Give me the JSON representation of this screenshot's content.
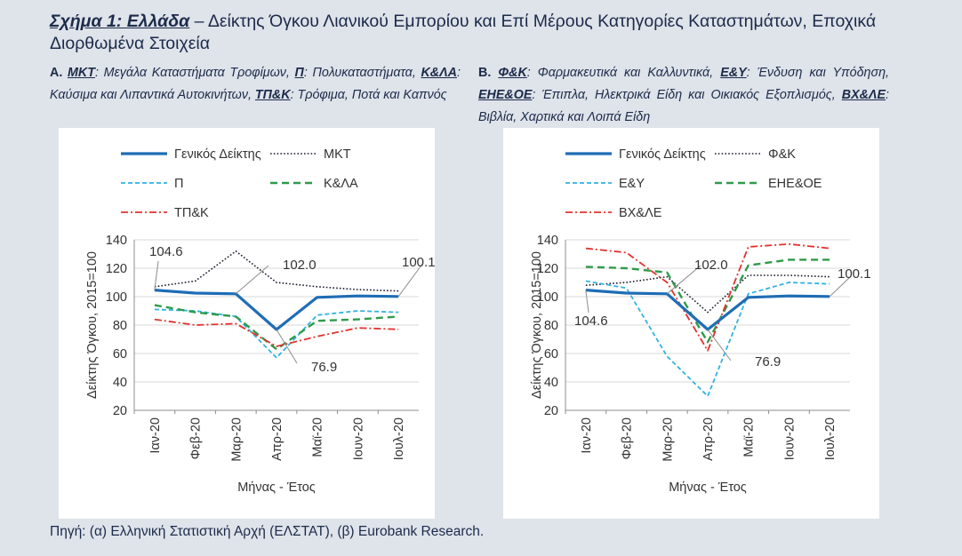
{
  "title": {
    "lead": "Σχήμα 1: Ελλάδα",
    "rest": " – Δείκτης Όγκου Λιανικού Εμπορίου και Επί Μέρους Κατηγορίες Καταστημάτων, Εποχικά Διορθωμένα Στοιχεία"
  },
  "note_a": {
    "letter": "Α.",
    "items": [
      {
        "abbr": "ΜΚΤ",
        "text": "Μεγάλα Καταστήματα Τροφίμων,"
      },
      {
        "abbr": "Π",
        "text": "Πολυκαταστήματα,"
      },
      {
        "abbr": "Κ&ΛΑ",
        "text": "Καύσιμα και Λιπαντικά Αυτοκινήτων,"
      },
      {
        "abbr": "ΤΠ&Κ",
        "text": "Τρόφιμα, Ποτά και Καπνός"
      }
    ]
  },
  "note_b": {
    "letter": "Β.",
    "items": [
      {
        "abbr": "Φ&Κ",
        "text": "Φαρμακευτικά και Καλλυντικά,"
      },
      {
        "abbr": "Ε&Υ",
        "text": "Ένδυση και Υπόδηση,"
      },
      {
        "abbr": "ΕΗΕ&ΟΕ",
        "text": "Έπιπλα, Ηλεκτρικά Είδη και Οικιακός Εξοπλισμός,"
      },
      {
        "abbr": "ΒΧ&ΛΕ",
        "text": "Βιβλία, Χαρτικά και Λοιπά Είδη"
      }
    ]
  },
  "source": "Πηγή: (α) Ελληνική Στατιστική Αρχή (ΕΛΣΤΑΤ), (β) Eurobank Research.",
  "colors": {
    "general": "#1f6db5",
    "dotted": "#1a1a2e",
    "dashed_light": "#2fb3e0",
    "dashed_green": "#2e9a4a",
    "dashdot_red": "#e0332e",
    "grid": "#d9d9d9",
    "axis": "#8c8c8c"
  },
  "chart_data": [
    {
      "type": "line",
      "id": "a",
      "xlabel": "Μήνας - Έτος",
      "ylabel": "Δείκτης Όγκου, 2015=100",
      "ylim": [
        20,
        140
      ],
      "yticks": [
        20,
        40,
        60,
        80,
        100,
        120,
        140
      ],
      "grid": true,
      "categories": [
        "Ιαν-20",
        "Φεβ-20",
        "Μαρ-20",
        "Απρ-20",
        "Μαϊ-20",
        "Ιουν-20",
        "Ιουλ-20"
      ],
      "series": [
        {
          "name": "Γενικός Δείκτης",
          "style": "general",
          "values": [
            104.6,
            102.5,
            102.0,
            76.9,
            99.5,
            100.5,
            100.1
          ]
        },
        {
          "name": "ΜΚΤ",
          "style": "dotted",
          "values": [
            107,
            111,
            132,
            110,
            107,
            105,
            104
          ]
        },
        {
          "name": "Π",
          "style": "dashed_light",
          "values": [
            91,
            90,
            86,
            57,
            87,
            90,
            89
          ]
        },
        {
          "name": "Κ&ΛΑ",
          "style": "dashed_green",
          "values": [
            94,
            89,
            86,
            63,
            83,
            84,
            86
          ]
        },
        {
          "name": "ΤΠ&Κ",
          "style": "dashdot_red",
          "values": [
            84,
            80,
            81,
            65,
            72,
            78,
            77
          ]
        }
      ],
      "annotations": [
        {
          "label": "104.6"
        },
        {
          "label": "102.0"
        },
        {
          "label": "76.9"
        },
        {
          "label": "100.1"
        }
      ]
    },
    {
      "type": "line",
      "id": "b",
      "xlabel": "Μήνας - Έτος",
      "ylabel": "Δείκτης Όγκου, 2015=100",
      "ylim": [
        20,
        140
      ],
      "yticks": [
        20,
        40,
        60,
        80,
        100,
        120,
        140
      ],
      "grid": true,
      "categories": [
        "Ιαν-20",
        "Φεβ-20",
        "Μαρ-20",
        "Απρ-20",
        "Μαϊ-20",
        "Ιουν-20",
        "Ιουλ-20"
      ],
      "series": [
        {
          "name": "Γενικός Δείκτης",
          "style": "general",
          "values": [
            104.6,
            102.5,
            102.0,
            76.9,
            99.5,
            100.5,
            100.1
          ]
        },
        {
          "name": "Φ&Κ",
          "style": "dotted",
          "values": [
            108,
            110,
            114,
            89,
            115,
            115,
            114
          ]
        },
        {
          "name": "Ε&Υ",
          "style": "dashed_light",
          "values": [
            111,
            106,
            58,
            30,
            102,
            110,
            109
          ]
        },
        {
          "name": "ΕΗΕ&ΟΕ",
          "style": "dashed_green",
          "values": [
            121,
            120,
            117,
            68,
            122,
            126,
            126
          ]
        },
        {
          "name": "ΒΧ&ΛΕ",
          "style": "dashdot_red",
          "values": [
            134,
            131,
            110,
            62,
            135,
            137,
            134
          ]
        }
      ],
      "annotations": [
        {
          "label": "104.6"
        },
        {
          "label": "102.0"
        },
        {
          "label": "76.9"
        },
        {
          "label": "100.1"
        }
      ]
    }
  ]
}
